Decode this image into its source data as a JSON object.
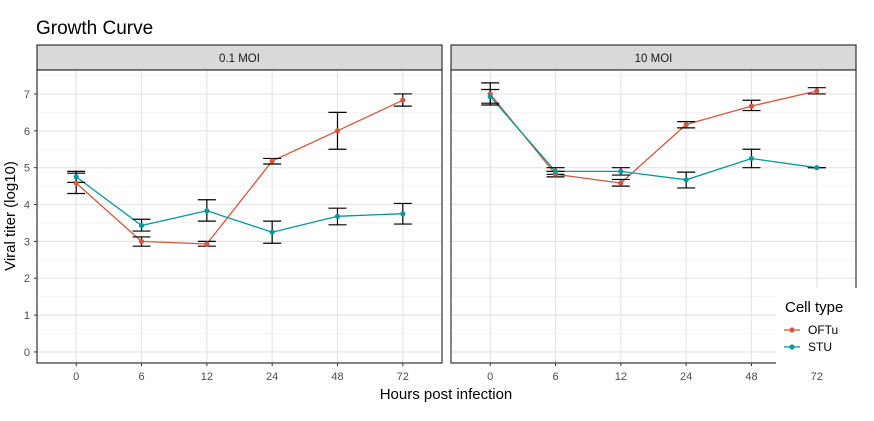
{
  "chart_data": {
    "type": "line",
    "title": "Growth Curve",
    "xlabel": "Hours post infection",
    "ylabel": "Viral titer (log10)",
    "categories": [
      "0",
      "6",
      "12",
      "24",
      "48",
      "72"
    ],
    "y_ticks": [
      0,
      1,
      2,
      3,
      4,
      5,
      6,
      7
    ],
    "ylim": [
      -0.3,
      7.65
    ],
    "grid": true,
    "legend": {
      "title": "Cell type",
      "position": "bottom-right",
      "entries": [
        "OFTu",
        "STU"
      ]
    },
    "colors": {
      "OFTu": "#d9553e",
      "STU": "#00999f"
    },
    "panels": [
      {
        "label": "0.1 MOI",
        "series": [
          {
            "name": "OFTu",
            "values": [
              4.58,
              3.0,
              2.93,
              5.18,
              6.0,
              6.83
            ],
            "error_low": [
              4.3,
              2.87,
              2.87,
              5.1,
              5.5,
              6.67
            ],
            "error_high": [
              4.85,
              3.12,
              3.0,
              5.25,
              6.5,
              7.0
            ]
          },
          {
            "name": "STU",
            "values": [
              4.75,
              3.43,
              3.83,
              3.25,
              3.68,
              3.75
            ],
            "error_low": [
              4.6,
              3.28,
              3.55,
              2.95,
              3.45,
              3.47
            ],
            "error_high": [
              4.9,
              3.6,
              4.13,
              3.55,
              3.9,
              4.03
            ]
          }
        ]
      },
      {
        "label": "10 MOI",
        "series": [
          {
            "name": "OFTu",
            "values": [
              7.0,
              4.82,
              4.58,
              6.17,
              6.67,
              7.08
            ],
            "error_low": [
              6.7,
              4.75,
              4.5,
              6.08,
              6.55,
              7.0
            ],
            "error_high": [
              7.3,
              4.9,
              4.68,
              6.25,
              6.83,
              7.17
            ]
          },
          {
            "name": "STU",
            "values": [
              6.93,
              4.9,
              4.9,
              4.67,
              5.25,
              5.0
            ],
            "error_low": [
              6.75,
              4.82,
              4.8,
              4.45,
              5.0,
              5.0
            ],
            "error_high": [
              7.12,
              5.0,
              5.0,
              4.88,
              5.5,
              5.0
            ]
          }
        ]
      }
    ]
  }
}
